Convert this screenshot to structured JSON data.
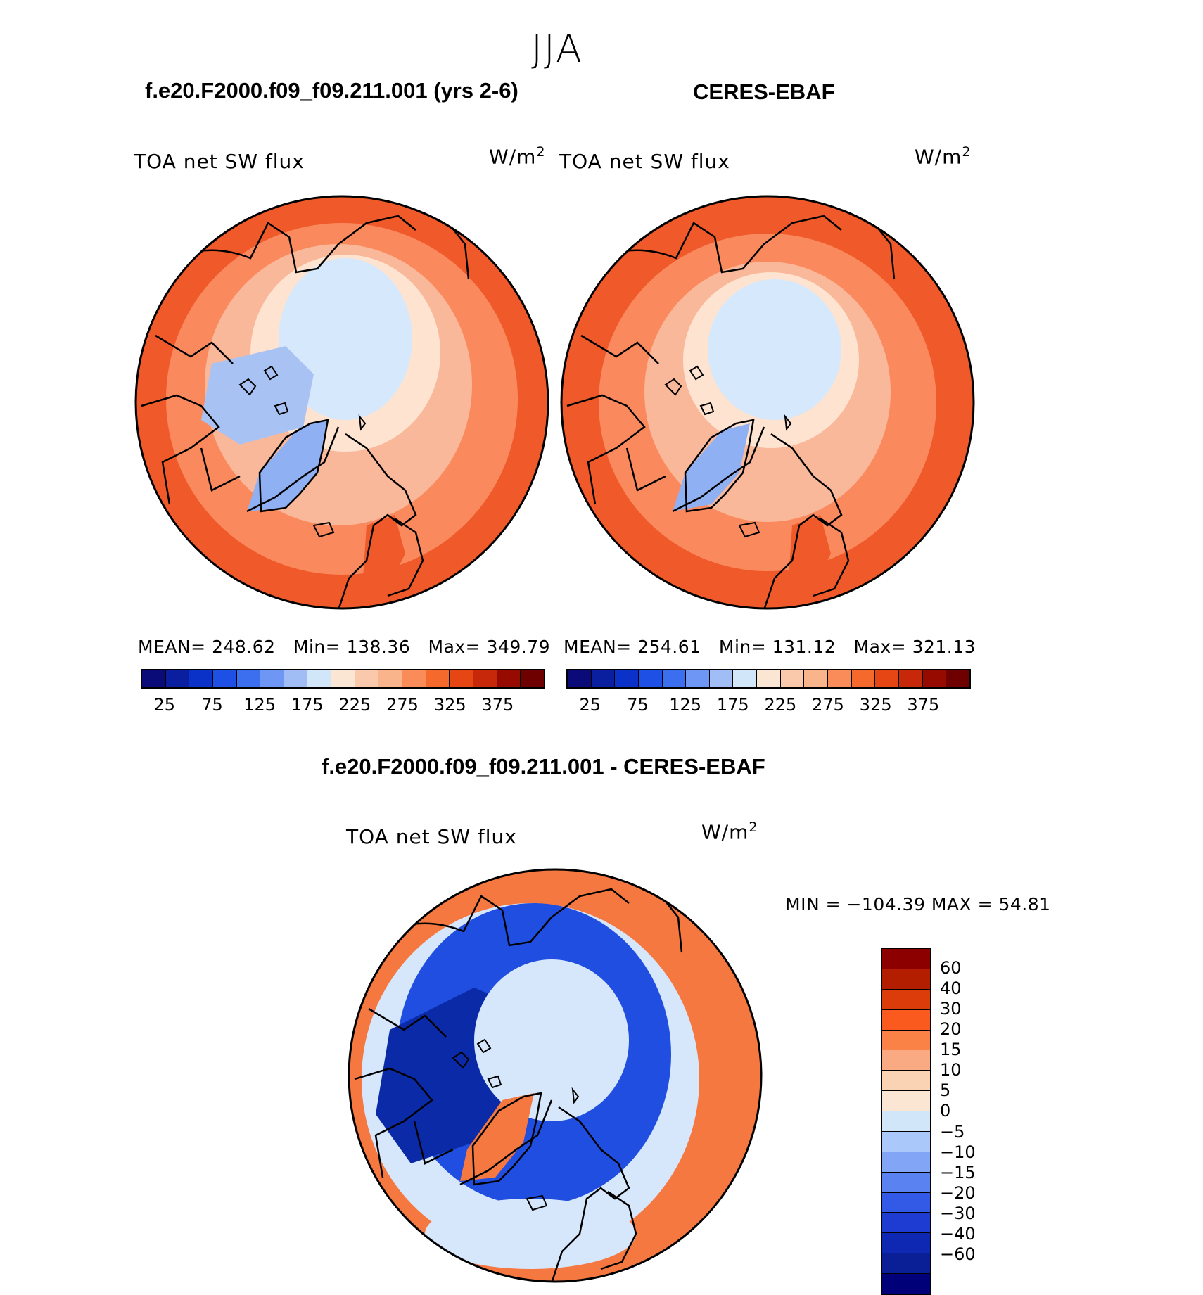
{
  "season": "JJA",
  "panels": {
    "model": {
      "title": "f.e20.F2000.f09_f09.211.001 (yrs 2-6)",
      "variable": "TOA net SW flux",
      "units_base": "W/m",
      "units_exp": "2",
      "stats": {
        "mean_label": "MEAN=",
        "mean": "248.62",
        "min_label": "Min=",
        "min": "138.36",
        "max_label": "Max=",
        "max": "349.79"
      }
    },
    "obs": {
      "title": "CERES-EBAF",
      "variable": "TOA net SW flux",
      "units_base": "W/m",
      "units_exp": "2",
      "stats": {
        "mean_label": "MEAN=",
        "mean": "254.61",
        "min_label": "Min=",
        "min": "131.12",
        "max_label": "Max=",
        "max": "321.13"
      }
    },
    "diff": {
      "title": "f.e20.F2000.f09_f09.211.001 - CERES-EBAF",
      "variable": "TOA net SW flux",
      "units_base": "W/m",
      "units_exp": "2",
      "minmax": "MIN = −104.39 MAX =   54.81"
    }
  },
  "abs_colorbar": {
    "colors": [
      "#0a0a78",
      "#0a1ea0",
      "#0a32c8",
      "#1e50e6",
      "#3c6ef0",
      "#6e96f5",
      "#a0bef5",
      "#d2e6fa",
      "#fae6d2",
      "#fac8aa",
      "#fab48c",
      "#fa8c5a",
      "#f5692d",
      "#e64614",
      "#c8280a",
      "#960a00",
      "#6e0000"
    ],
    "tick_labels": [
      "25",
      "75",
      "125",
      "175",
      "225",
      "275",
      "325",
      "375"
    ]
  },
  "diff_colorbar": {
    "colors": [
      "#8c0000",
      "#b41e00",
      "#dc3c0a",
      "#fa5a1e",
      "#fa8246",
      "#faaa82",
      "#fad2b4",
      "#fae6d2",
      "#d2e6fa",
      "#aac8fa",
      "#82a5f5",
      "#5a82f0",
      "#325ae6",
      "#1e3cd2",
      "#0f28b4",
      "#0a1e96",
      "#000078"
    ],
    "tick_labels": [
      "60",
      "40",
      "30",
      "20",
      "15",
      "10",
      "5",
      "0",
      "−5",
      "−10",
      "−15",
      "−20",
      "−30",
      "−40",
      "−60"
    ]
  },
  "map_colors": {
    "high": "#f05a2a",
    "mid": "#fa8a5e",
    "low": "#fab89a",
    "pale": "#fde3d0",
    "ice": "#d6e8fb",
    "greenland": "#8fb0f2",
    "archipelago": "#a9c2f4",
    "d_red": "#f57840",
    "d_blue": "#1f4ee0",
    "d_dark": "#0a2aa8",
    "d_light": "#d6e6fb"
  }
}
